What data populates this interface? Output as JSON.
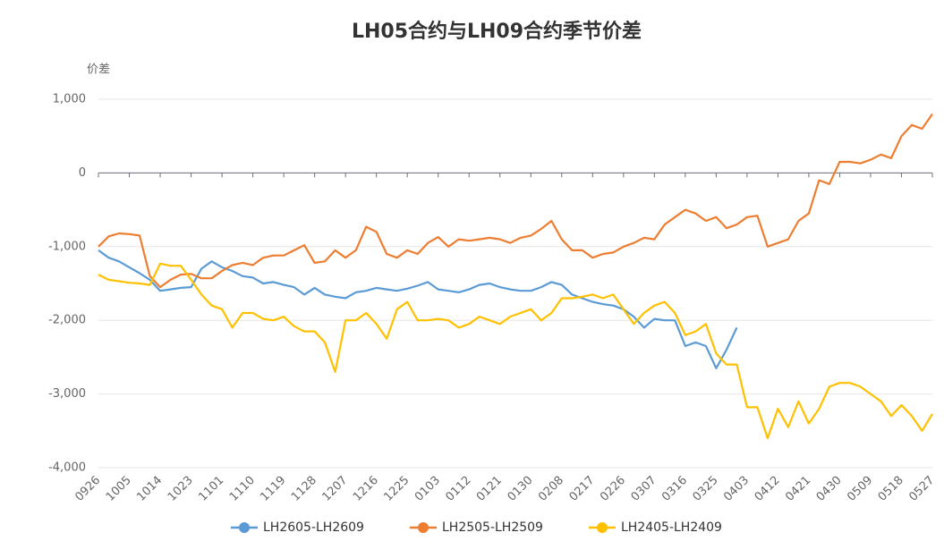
{
  "chart_data": {
    "type": "line",
    "title": "LH05合约与LH09合约季节价差",
    "y_label": "价差",
    "categories": [
      "0926",
      null,
      null,
      "1005",
      null,
      null,
      "1014",
      null,
      null,
      "1023",
      null,
      null,
      "1101",
      null,
      null,
      "1110",
      null,
      null,
      "1119",
      null,
      null,
      "1128",
      null,
      null,
      "1207",
      null,
      null,
      "1216",
      null,
      null,
      "1225",
      null,
      null,
      "0103",
      null,
      null,
      "0112",
      null,
      null,
      "0121",
      null,
      null,
      "0130",
      null,
      null,
      "0208",
      null,
      null,
      "0217",
      null,
      null,
      "0226",
      null,
      null,
      "0307",
      null,
      null,
      "0316",
      null,
      null,
      "0325",
      null,
      null,
      "0403",
      null,
      null,
      "0412",
      null,
      null,
      "0421",
      null,
      null,
      "0430",
      null,
      null,
      "0509",
      null,
      null,
      "0518",
      null,
      null,
      "0527"
    ],
    "series": [
      {
        "name": "LH2605-LH2609",
        "color": "#5b9bd5",
        "values": [
          -1050,
          -1150,
          -1200,
          -1280,
          -1360,
          -1450,
          -1600,
          -1580,
          -1560,
          -1550,
          -1300,
          -1200,
          -1280,
          -1330,
          -1400,
          -1420,
          -1500,
          -1480,
          -1520,
          -1550,
          -1650,
          -1560,
          -1650,
          -1680,
          -1700,
          -1620,
          -1600,
          -1560,
          -1580,
          -1600,
          -1570,
          -1530,
          -1480,
          -1580,
          -1600,
          -1620,
          -1580,
          -1520,
          -1500,
          -1550,
          -1580,
          -1600,
          -1600,
          -1550,
          -1480,
          -1520,
          -1650,
          -1700,
          -1750,
          -1780,
          -1800,
          -1850,
          -1950,
          -2100,
          -1980,
          -2000,
          -2000,
          -2350,
          -2300,
          -2350,
          -2650,
          -2400,
          -2100,
          null,
          null,
          null,
          null,
          null,
          null,
          null,
          null,
          null,
          null,
          null,
          null,
          null,
          null,
          null,
          null,
          null,
          null,
          null
        ]
      },
      {
        "name": "LH2505-LH2509",
        "color": "#ed7d31",
        "values": [
          -1000,
          -860,
          -820,
          -830,
          -850,
          -1400,
          -1550,
          -1450,
          -1380,
          -1370,
          -1430,
          -1430,
          -1330,
          -1250,
          -1220,
          -1250,
          -1150,
          -1120,
          -1120,
          -1050,
          -980,
          -1220,
          -1200,
          -1050,
          -1150,
          -1050,
          -730,
          -800,
          -1100,
          -1150,
          -1050,
          -1100,
          -950,
          -870,
          -1000,
          -900,
          -920,
          -900,
          -880,
          -900,
          -950,
          -880,
          -850,
          -760,
          -650,
          -900,
          -1050,
          -1050,
          -1150,
          -1100,
          -1080,
          -1000,
          -950,
          -880,
          -900,
          -700,
          -600,
          -500,
          -550,
          -650,
          -600,
          -750,
          -700,
          -600,
          -580,
          -1000,
          -950,
          -900,
          -650,
          -550,
          -100,
          -150,
          150,
          150,
          130,
          180,
          250,
          200,
          500,
          650,
          600,
          800
        ]
      },
      {
        "name": "LH2405-LH2409",
        "color": "#ffc000",
        "values": [
          -1380,
          -1450,
          -1470,
          -1490,
          -1500,
          -1520,
          -1230,
          -1260,
          -1260,
          -1450,
          -1650,
          -1800,
          -1850,
          -2100,
          -1900,
          -1900,
          -1980,
          -2000,
          -1950,
          -2080,
          -2150,
          -2150,
          -2300,
          -2700,
          -2000,
          -2000,
          -1900,
          -2050,
          -2250,
          -1850,
          -1750,
          -2000,
          -2000,
          -1980,
          -2000,
          -2100,
          -2050,
          -1950,
          -2000,
          -2050,
          -1950,
          -1900,
          -1850,
          -2000,
          -1900,
          -1700,
          -1700,
          -1680,
          -1650,
          -1700,
          -1650,
          -1850,
          -2050,
          -1900,
          -1800,
          -1750,
          -1900,
          -2200,
          -2150,
          -2050,
          -2450,
          -2600,
          -2600,
          -3180,
          -3180,
          -3600,
          -3200,
          -3450,
          -3100,
          -3400,
          -3200,
          -2900,
          -2850,
          -2850,
          -2900,
          -3000,
          -3100,
          -3300,
          -3150,
          -3300,
          -3500,
          -3270
        ]
      }
    ],
    "ylim": [
      -4000,
      1000
    ],
    "yticks": [
      {
        "value": -4000,
        "label": "-4,000"
      },
      {
        "value": -3000,
        "label": "-3,000"
      },
      {
        "value": -2000,
        "label": "-2,000"
      },
      {
        "value": -1000,
        "label": "-1,000"
      },
      0,
      {
        "value": 1000,
        "label": "1,000"
      }
    ],
    "grid": true,
    "legend": "bottom"
  }
}
